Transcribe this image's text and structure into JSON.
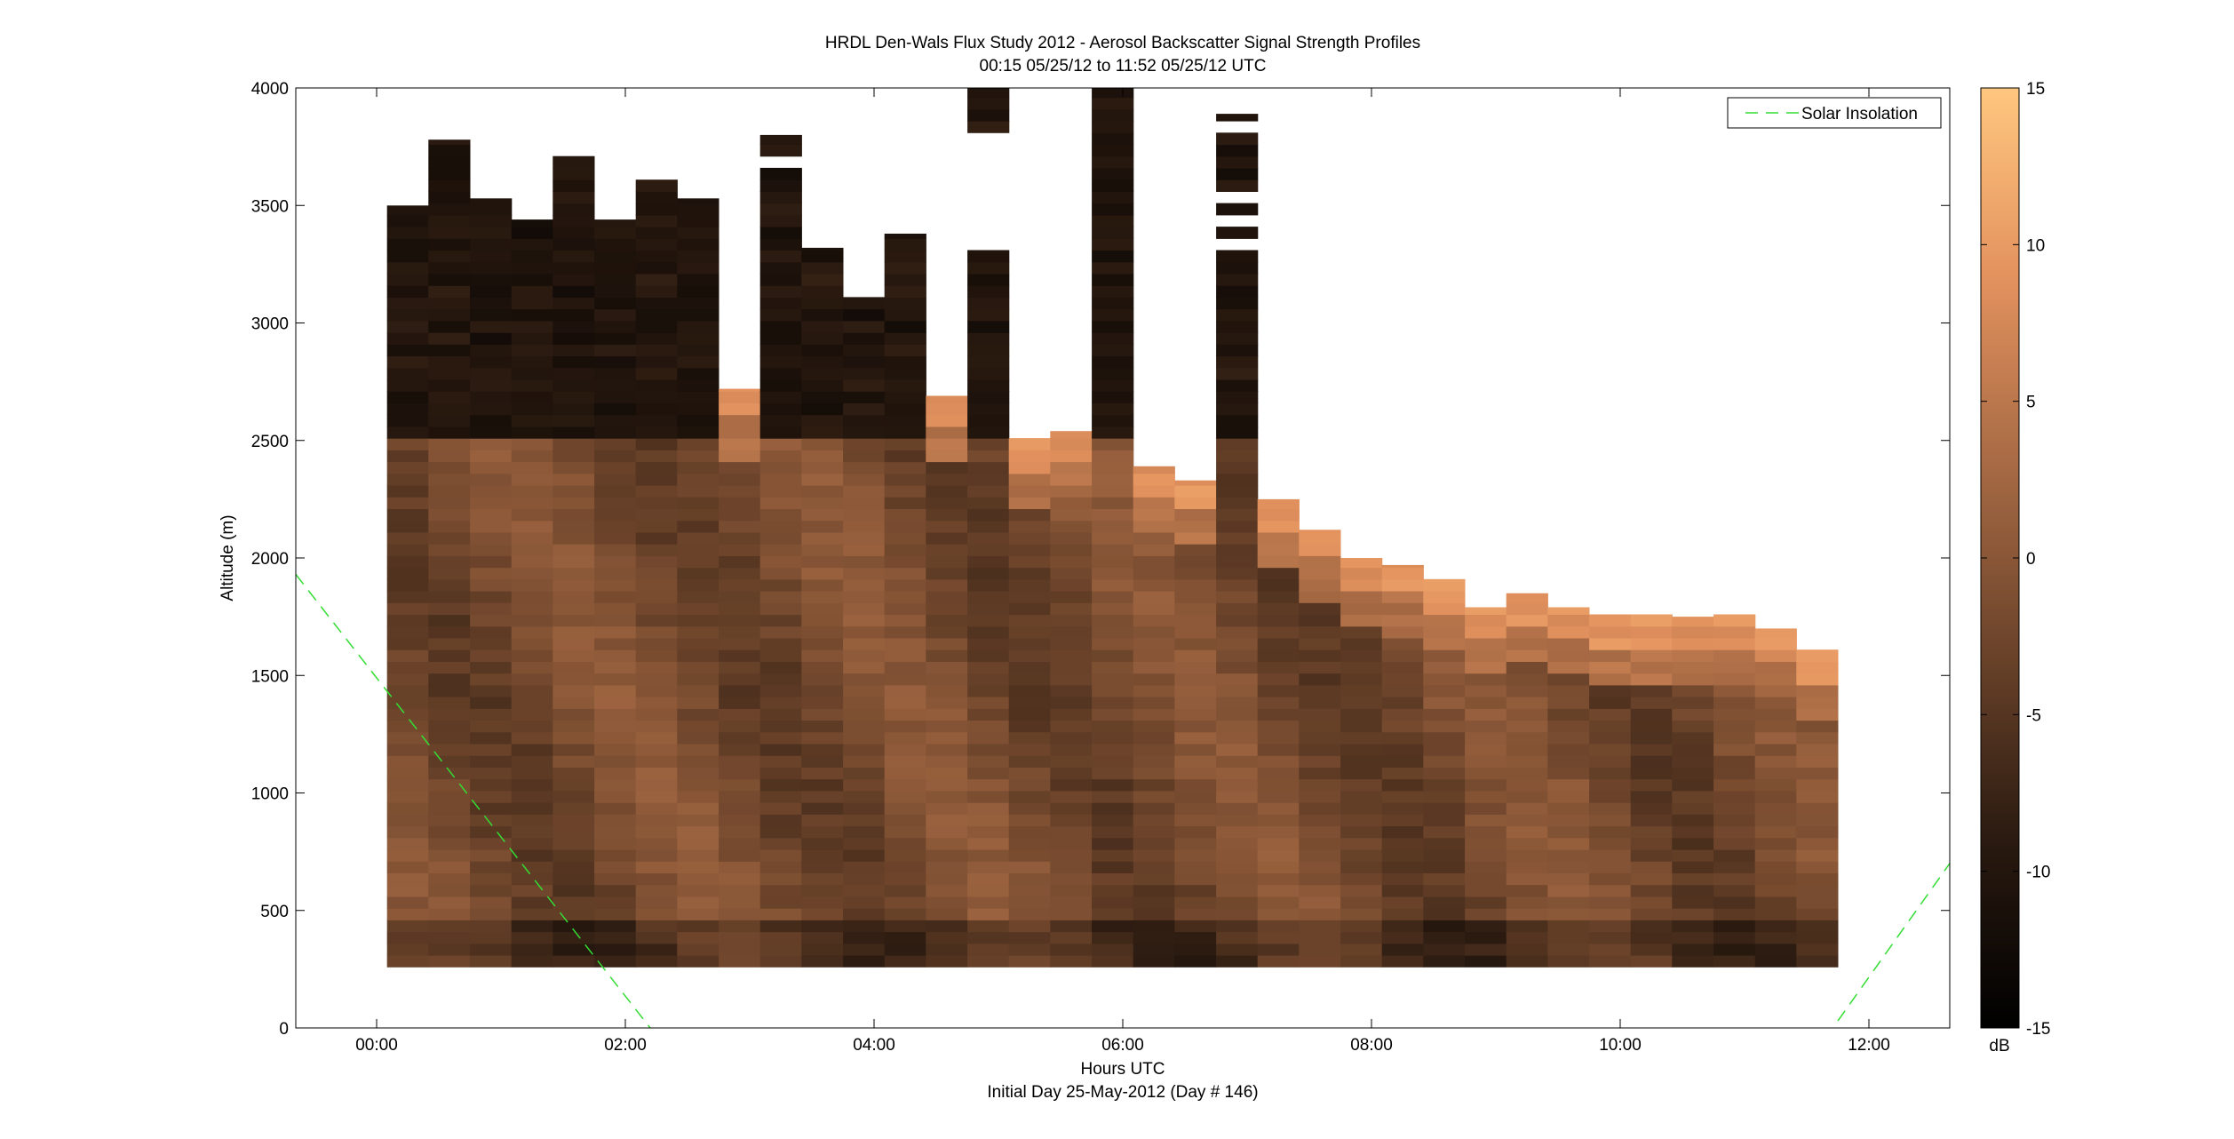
{
  "chart_data": {
    "type": "heatmap",
    "title": "HRDL Den-Wals Flux Study 2012 - Aerosol Backscatter Signal Strength Profiles",
    "subtitle": "00:15 05/25/12 to 11:52 05/25/12  UTC",
    "xlabel": "Hours UTC",
    "xlabel2": "Initial Day 25-May-2012 (Day # 146)",
    "ylabel": "Altitude (m)",
    "xlim_hours": [
      -0.65,
      12.65
    ],
    "ylim": [
      0,
      4000
    ],
    "x_ticks": [
      {
        "v": 0,
        "label": "00:00"
      },
      {
        "v": 2,
        "label": "02:00"
      },
      {
        "v": 4,
        "label": "04:00"
      },
      {
        "v": 6,
        "label": "06:00"
      },
      {
        "v": 8,
        "label": "08:00"
      },
      {
        "v": 10,
        "label": "10:00"
      },
      {
        "v": 12,
        "label": "12:00"
      }
    ],
    "y_ticks": [
      0,
      500,
      1000,
      1500,
      2000,
      2500,
      3000,
      3500,
      4000
    ],
    "colorbar": {
      "min": -15,
      "max": 15,
      "ticks": [
        -15,
        -10,
        -5,
        0,
        5,
        10,
        15
      ],
      "unit": "dB"
    },
    "legend": {
      "label": "Solar Insolation",
      "position": "top-right",
      "color": "#33dd33"
    },
    "grid": false,
    "profile_bottom_m": 260,
    "profile_width_hours": 0.333,
    "profiles": [
      {
        "t": 0.25,
        "top": 3500
      },
      {
        "t": 0.583,
        "top": 3780
      },
      {
        "t": 0.917,
        "top": 3530
      },
      {
        "t": 1.25,
        "top": 3440
      },
      {
        "t": 1.583,
        "top": 3710
      },
      {
        "t": 1.917,
        "top": 3440
      },
      {
        "t": 2.25,
        "top": 3650,
        "gaps": [
          [
            3600,
            3630
          ]
        ]
      },
      {
        "t": 2.583,
        "top": 3530,
        "gaps": [
          [
            3480,
            3500
          ]
        ]
      },
      {
        "t": 2.917,
        "top": 2720
      },
      {
        "t": 3.25,
        "top": 3800,
        "gaps": [
          [
            3650,
            3690
          ]
        ]
      },
      {
        "t": 3.583,
        "top": 3320
      },
      {
        "t": 3.917,
        "top": 3110
      },
      {
        "t": 4.25,
        "top": 3380
      },
      {
        "t": 4.583,
        "top": 2690
      },
      {
        "t": 4.917,
        "top": 4000,
        "gaps": [
          [
            3350,
            3800
          ],
          [
            3290,
            3320
          ]
        ]
      },
      {
        "t": 5.25,
        "top": 2510
      },
      {
        "t": 5.583,
        "top": 2540
      },
      {
        "t": 5.917,
        "top": 4000
      },
      {
        "t": 6.25,
        "top": 2390
      },
      {
        "t": 6.583,
        "top": 2330
      },
      {
        "t": 6.917,
        "top": 3890,
        "gaps": [
          [
            3780,
            3830
          ],
          [
            3690,
            3710
          ],
          [
            3630,
            3650
          ],
          [
            3580,
            3600
          ],
          [
            3500,
            3520
          ],
          [
            3410,
            3430
          ],
          [
            3310,
            3320
          ],
          [
            3270,
            3290
          ]
        ]
      },
      {
        "t": 7.25,
        "top": 2250
      },
      {
        "t": 7.583,
        "top": 2120
      },
      {
        "t": 7.917,
        "top": 2000
      },
      {
        "t": 8.25,
        "top": 1970
      },
      {
        "t": 8.583,
        "top": 1910
      },
      {
        "t": 8.917,
        "top": 1790
      },
      {
        "t": 9.25,
        "top": 1850
      },
      {
        "t": 9.583,
        "top": 1790
      },
      {
        "t": 9.917,
        "top": 1760
      },
      {
        "t": 10.25,
        "top": 1760
      },
      {
        "t": 10.583,
        "top": 1750
      },
      {
        "t": 10.917,
        "top": 1760
      },
      {
        "t": 11.25,
        "top": 1700
      },
      {
        "t": 11.583,
        "top": 1610
      }
    ],
    "solar_insolation": [
      {
        "segment": [
          [
            -0.65,
            1930
          ],
          [
            2.2,
            0
          ]
        ]
      },
      {
        "segment": [
          [
            11.75,
            30
          ],
          [
            12.65,
            700
          ]
        ]
      }
    ]
  }
}
